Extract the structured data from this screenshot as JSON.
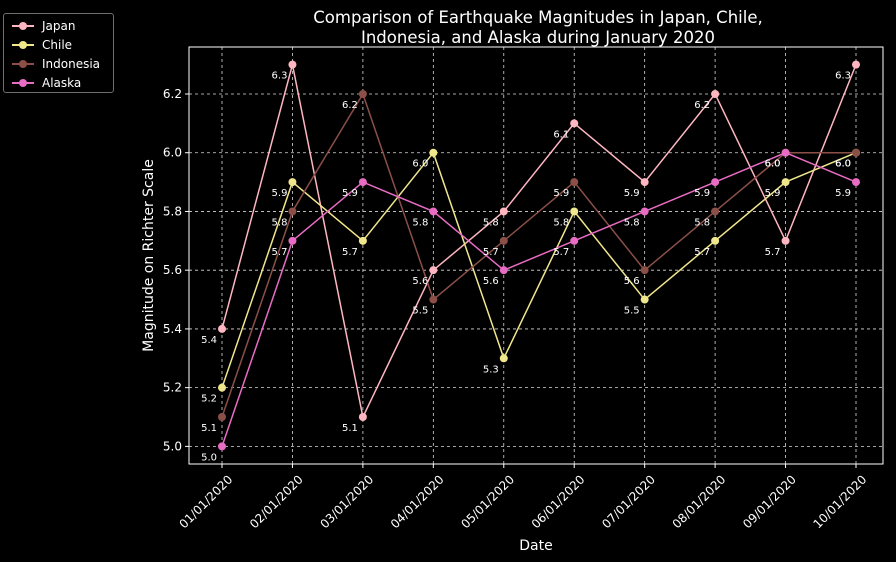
{
  "chart_data": {
    "type": "line",
    "title": "Comparison of Earthquake Magnitudes in Japan, Chile,\nIndonesia, and Alaska during January 2020",
    "title_lines": [
      "Comparison of Earthquake Magnitudes in Japan, Chile,",
      "Indonesia, and Alaska during January 2020"
    ],
    "xlabel": "Date",
    "ylabel": "Magnitude on Richter Scale",
    "categories": [
      "01/01/2020",
      "02/01/2020",
      "03/01/2020",
      "04/01/2020",
      "05/01/2020",
      "06/01/2020",
      "07/01/2020",
      "08/01/2020",
      "09/01/2020",
      "10/01/2020"
    ],
    "ylim": [
      4.94,
      6.36
    ],
    "yticks": [
      "5.0",
      "5.2",
      "5.4",
      "5.6",
      "5.8",
      "6.0",
      "6.2"
    ],
    "grid": true,
    "legend_position": "outside-top-left",
    "series": [
      {
        "name": "Japan",
        "color": "#ffb6c1",
        "values": [
          5.4,
          6.3,
          5.1,
          5.6,
          5.8,
          6.1,
          5.9,
          6.2,
          5.7,
          6.3
        ]
      },
      {
        "name": "Chile",
        "color": "#f0e68c",
        "values": [
          5.2,
          5.9,
          5.7,
          6.0,
          5.3,
          5.8,
          5.5,
          5.7,
          5.9,
          6.0
        ]
      },
      {
        "name": "Indonesia",
        "color": "#8b4f48",
        "values": [
          5.1,
          5.8,
          6.2,
          5.5,
          5.7,
          5.9,
          5.6,
          5.8,
          6.0,
          6.0
        ]
      },
      {
        "name": "Alaska",
        "color": "#e86cc4",
        "values": [
          5.0,
          5.7,
          5.9,
          5.8,
          5.6,
          5.7,
          5.8,
          5.9,
          6.0,
          5.9
        ]
      }
    ]
  }
}
